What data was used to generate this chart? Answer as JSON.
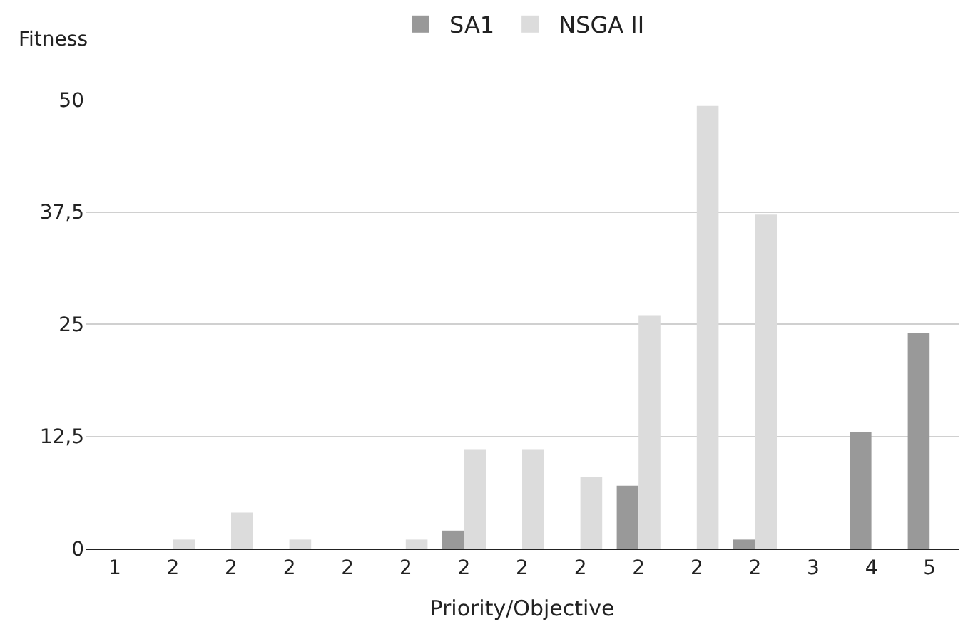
{
  "chart_data": {
    "type": "bar",
    "xlabel": "Priority/Objective",
    "ylabel": "Fitness",
    "categories": [
      "1",
      "2",
      "2",
      "2",
      "2",
      "2",
      "2",
      "2",
      "2",
      "2",
      "2",
      "2",
      "3",
      "4",
      "5"
    ],
    "series": [
      {
        "name": "SA1",
        "color": "#999999",
        "values": [
          0,
          0,
          0,
          0,
          0,
          0,
          2,
          0,
          0,
          7,
          0,
          1,
          0,
          13,
          24
        ]
      },
      {
        "name": "NSGA II",
        "color": "#dcdcdc",
        "values": [
          0,
          1,
          4,
          1,
          0,
          1,
          11,
          11,
          8,
          26,
          49.3,
          37.2,
          0,
          0,
          0
        ]
      }
    ],
    "ylim": [
      0,
      50
    ],
    "yticks": [
      0,
      {
        "value": 12.5,
        "label": "12,5"
      },
      25,
      {
        "value": 37.5,
        "label": "37,5"
      },
      50
    ],
    "grid": "y",
    "legend": "top"
  }
}
